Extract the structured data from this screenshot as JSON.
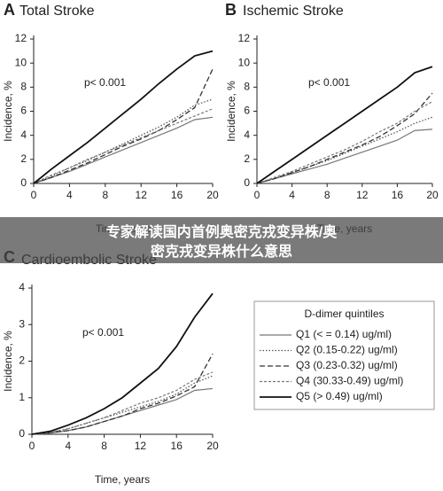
{
  "chart_data": [
    {
      "type": "line",
      "label": "A",
      "title": "Total Stroke",
      "ylabel": "Incidence, %",
      "xlabel": "Time, years",
      "annotation": "p< 0.001",
      "x": [
        0,
        2,
        4,
        6,
        8,
        10,
        12,
        14,
        16,
        18,
        20
      ],
      "xlim": [
        0,
        20
      ],
      "xticks": [
        0,
        4,
        8,
        12,
        16,
        20
      ],
      "ylim": [
        0,
        12
      ],
      "yticks": [
        0,
        2,
        4,
        6,
        8,
        10,
        12
      ],
      "series": [
        {
          "color": "#777777",
          "dash": "solid",
          "values": [
            0,
            0.5,
            1.0,
            1.6,
            2.2,
            2.8,
            3.4,
            4.0,
            4.6,
            5.3,
            5.5
          ]
        },
        {
          "color": "#555555",
          "dash": "dotted",
          "values": [
            0,
            0.6,
            1.3,
            1.9,
            2.6,
            3.3,
            4.0,
            4.7,
            5.5,
            6.5,
            7.0
          ]
        },
        {
          "color": "#333333",
          "dash": "long",
          "values": [
            0,
            0.5,
            1.1,
            1.7,
            2.4,
            3.1,
            3.7,
            4.4,
            5.3,
            6.3,
            9.5
          ]
        },
        {
          "color": "#777777",
          "dash": "short",
          "values": [
            0,
            0.7,
            1.3,
            2.0,
            2.6,
            3.2,
            3.8,
            4.4,
            5.0,
            5.6,
            6.2
          ]
        },
        {
          "color": "#111111",
          "dash": "bold",
          "values": [
            0,
            1.2,
            2.3,
            3.4,
            4.6,
            5.8,
            7.0,
            8.3,
            9.5,
            10.6,
            11.0
          ]
        }
      ]
    },
    {
      "type": "line",
      "label": "B",
      "title": "Ischemic Stroke",
      "ylabel": "Incidence, %",
      "xlabel": "Time, years",
      "annotation": "p< 0.001",
      "x": [
        0,
        2,
        4,
        6,
        8,
        10,
        12,
        14,
        16,
        18,
        20
      ],
      "xlim": [
        0,
        20
      ],
      "xticks": [
        0,
        4,
        8,
        12,
        16,
        20
      ],
      "ylim": [
        0,
        12
      ],
      "yticks": [
        0,
        2,
        4,
        6,
        8,
        10,
        12
      ],
      "series": [
        {
          "color": "#777777",
          "dash": "solid",
          "values": [
            0,
            0.4,
            0.8,
            1.2,
            1.6,
            2.1,
            2.6,
            3.1,
            3.6,
            4.4,
            4.5
          ]
        },
        {
          "color": "#555555",
          "dash": "dotted",
          "values": [
            0,
            0.4,
            0.9,
            1.4,
            1.9,
            2.5,
            3.1,
            3.7,
            4.3,
            5.0,
            5.5
          ]
        },
        {
          "color": "#333333",
          "dash": "long",
          "values": [
            0,
            0.4,
            0.9,
            1.4,
            2.0,
            2.6,
            3.2,
            3.9,
            4.8,
            5.8,
            7.5
          ]
        },
        {
          "color": "#777777",
          "dash": "short",
          "values": [
            0,
            0.5,
            1.0,
            1.6,
            2.2,
            2.8,
            3.5,
            4.3,
            5.0,
            6.0,
            6.8
          ]
        },
        {
          "color": "#111111",
          "dash": "bold",
          "values": [
            0,
            1.0,
            2.0,
            3.0,
            4.0,
            5.0,
            6.0,
            7.0,
            8.0,
            9.2,
            9.7
          ]
        }
      ]
    },
    {
      "type": "line",
      "label": "C",
      "title": "Cardioembolic Stroke",
      "ylabel": "Incidence, %",
      "xlabel": "Time, years",
      "annotation": "p< 0.001",
      "legend_title": "D-dimer quintiles",
      "x": [
        0,
        2,
        4,
        6,
        8,
        10,
        12,
        14,
        16,
        18,
        20
      ],
      "xlim": [
        0,
        20
      ],
      "xticks": [
        0,
        4,
        8,
        12,
        16,
        20
      ],
      "ylim": [
        0,
        4
      ],
      "yticks": [
        0,
        1,
        2,
        3,
        4
      ],
      "series": [
        {
          "name": "Q1 (< = 0.14) ug/ml)",
          "color": "#777777",
          "dash": "solid",
          "values": [
            0,
            0.03,
            0.1,
            0.2,
            0.35,
            0.5,
            0.65,
            0.8,
            0.95,
            1.2,
            1.25
          ]
        },
        {
          "name": "Q2 (0.15-0.22) ug/ml)",
          "color": "#555555",
          "dash": "dotted",
          "values": [
            0,
            0.05,
            0.15,
            0.3,
            0.45,
            0.6,
            0.75,
            0.9,
            1.1,
            1.4,
            1.6
          ]
        },
        {
          "name": "Q3 (0.23-0.32) ug/ml)",
          "color": "#333333",
          "dash": "long",
          "values": [
            0,
            0.05,
            0.1,
            0.2,
            0.35,
            0.5,
            0.7,
            0.85,
            1.05,
            1.3,
            2.2
          ]
        },
        {
          "name": "Q4 (30.33-0.49) ug/ml)",
          "color": "#777777",
          "dash": "short",
          "values": [
            0,
            0.05,
            0.15,
            0.3,
            0.45,
            0.65,
            0.85,
            1.0,
            1.2,
            1.5,
            1.7
          ]
        },
        {
          "name": "Q5 (> 0.49) ug/ml)",
          "color": "#111111",
          "dash": "bold",
          "values": [
            0,
            0.08,
            0.25,
            0.45,
            0.7,
            1.0,
            1.4,
            1.8,
            2.4,
            3.2,
            3.85
          ]
        }
      ]
    }
  ],
  "overlay": {
    "lines": [
      "专家解读国内首例奥密克戎变异株/奥",
      "密克戎变异株什么意思"
    ]
  }
}
